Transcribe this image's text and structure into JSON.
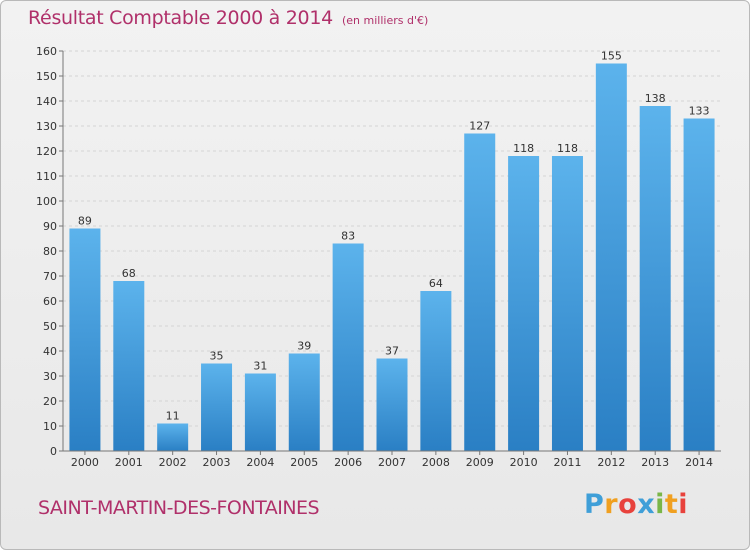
{
  "title": "Résultat Comptable 2000 à 2014",
  "subtitle": "(en milliers d'€)",
  "commune": "SAINT-MARTIN-DES-FONTAINES",
  "logo": {
    "letters": [
      "P",
      "r",
      "o",
      "x",
      "i",
      "t",
      "i"
    ],
    "colors": [
      "#3f9fd8",
      "#f0a020",
      "#e8423c",
      "#3f9fd8",
      "#7ab648",
      "#f0a020",
      "#e8423c"
    ]
  },
  "colors": {
    "bar": "#3a97dc",
    "title": "#b0306a"
  },
  "chart_data": {
    "type": "bar",
    "title": "Résultat Comptable 2000 à 2014",
    "subtitle": "(en milliers d'€)",
    "categories": [
      "2000",
      "2001",
      "2002",
      "2003",
      "2004",
      "2005",
      "2006",
      "2007",
      "2008",
      "2009",
      "2010",
      "2011",
      "2012",
      "2013",
      "2014"
    ],
    "values": [
      89,
      68,
      11,
      35,
      31,
      39,
      83,
      37,
      64,
      127,
      118,
      118,
      155,
      138,
      133
    ],
    "ylim": [
      0,
      160
    ],
    "yticks": [
      0,
      10,
      20,
      30,
      40,
      50,
      60,
      70,
      80,
      90,
      100,
      110,
      120,
      130,
      140,
      150,
      160
    ],
    "grid": true,
    "legend": "none"
  }
}
